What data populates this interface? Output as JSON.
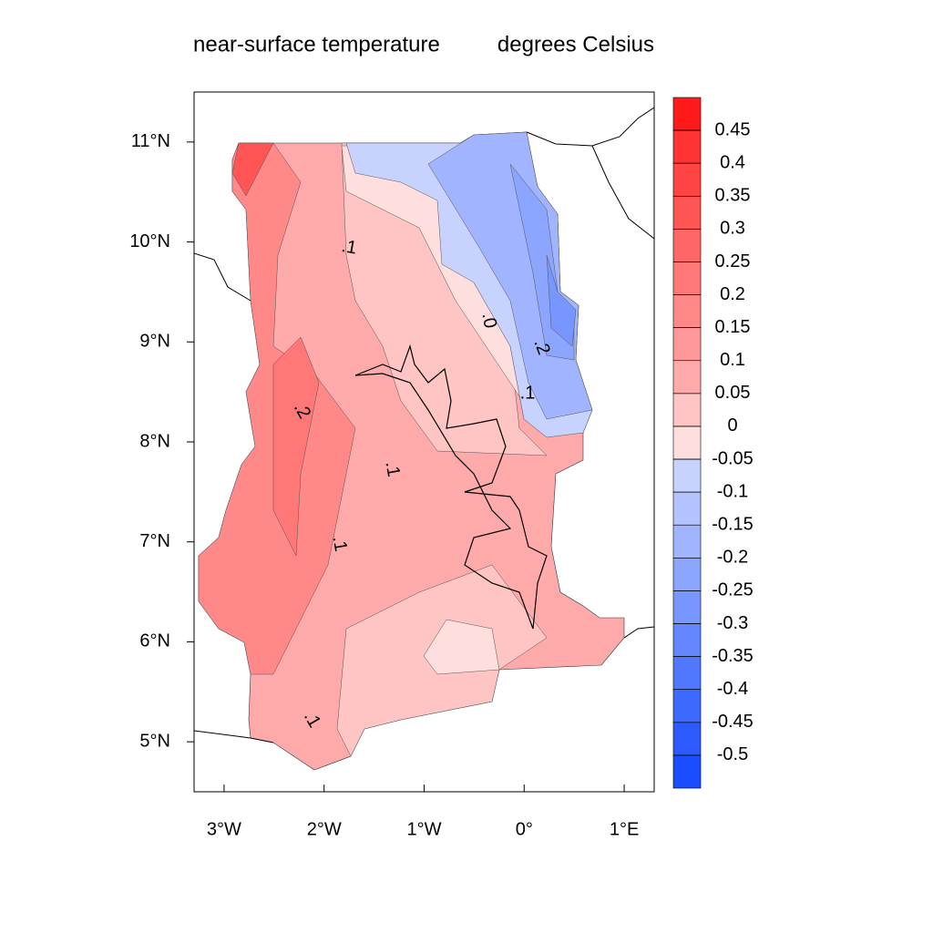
{
  "title": {
    "left": "near-surface temperature",
    "right": "degrees Celsius"
  },
  "map": {
    "xlim": [
      -3.3,
      1.3
    ],
    "ylim": [
      4.5,
      11.5
    ],
    "xticks": [
      {
        "value": -3,
        "label": "3°W"
      },
      {
        "value": -2,
        "label": "2°W"
      },
      {
        "value": -1,
        "label": "1°W"
      },
      {
        "value": 0,
        "label": "0°"
      },
      {
        "value": 1,
        "label": "1°E"
      }
    ],
    "yticks": [
      {
        "value": 5,
        "label": "5°N"
      },
      {
        "value": 6,
        "label": "6°N"
      },
      {
        "value": 7,
        "label": "7°N"
      },
      {
        "value": 8,
        "label": "8°N"
      },
      {
        "value": 9,
        "label": "9°N"
      },
      {
        "value": 10,
        "label": "10°N"
      },
      {
        "value": 11,
        "label": "11°N"
      }
    ],
    "contour_labels": [
      {
        "value": 0.1,
        "label": ".1"
      },
      {
        "value": 0,
        "label": ".0"
      },
      {
        "value": -0.2,
        "label": ".2"
      },
      {
        "value": -0.1,
        "label": ".1"
      },
      {
        "value": 0.2,
        "label": ".2"
      },
      {
        "value": 0.1,
        "label": ".1"
      },
      {
        "value": 0.1,
        "label": ".1"
      },
      {
        "value": 0.1,
        "label": ".1"
      }
    ]
  },
  "colorbar": {
    "levels": [
      0.45,
      0.4,
      0.35,
      0.3,
      0.25,
      0.2,
      0.15,
      0.1,
      0.05,
      0,
      -0.05,
      -0.1,
      -0.15,
      -0.2,
      -0.25,
      -0.3,
      -0.35,
      -0.4,
      -0.45,
      -0.5
    ],
    "colors": [
      "#ff1a1a",
      "#ff3333",
      "#ff4444",
      "#ff5555",
      "#ff6666",
      "#ff7777",
      "#ff8888",
      "#ff9999",
      "#ffaaaa",
      "#ffc4c4",
      "#ffdede",
      "#c8d2ff",
      "#b4c3ff",
      "#a0b4ff",
      "#8ca5ff",
      "#7896ff",
      "#6487ff",
      "#5078ff",
      "#3c69ff",
      "#2d5aff",
      "#1a4dff"
    ]
  }
}
